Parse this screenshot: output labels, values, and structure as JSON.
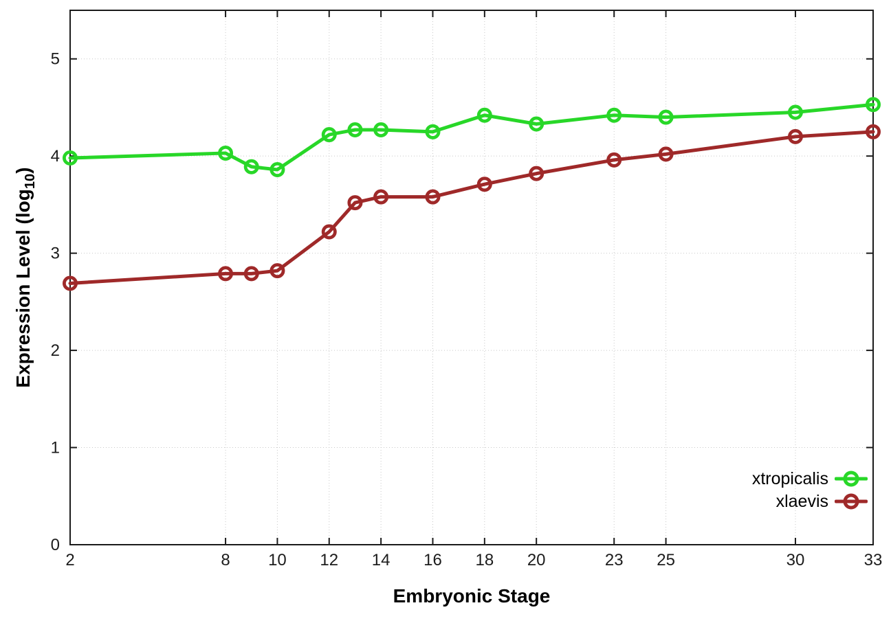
{
  "figure": {
    "x_axis_title": "Embryonic Stage",
    "y_axis_title_prefix": "Expression Level (log",
    "y_axis_title_sub": "10",
    "y_axis_title_suffix": ")"
  },
  "legend": {
    "entries": [
      {
        "label": "xtropicalis",
        "color": "#28d728"
      },
      {
        "label": "xlaevis",
        "color": "#9f2929"
      }
    ]
  },
  "chart_data": {
    "type": "line",
    "title": "",
    "xlabel": "Embryonic Stage",
    "ylabel": "Expression Level (log10)",
    "x": [
      2,
      8,
      9,
      10,
      12,
      13,
      14,
      16,
      18,
      20,
      23,
      25,
      30,
      33
    ],
    "xticks": [
      2,
      8,
      10,
      12,
      14,
      16,
      18,
      20,
      23,
      25,
      30,
      33
    ],
    "yticks": [
      0,
      1,
      2,
      3,
      4,
      5
    ],
    "xlim": [
      2,
      33
    ],
    "ylim": [
      0,
      5.5
    ],
    "grid": true,
    "grid_style": "dotted",
    "legend_position": "inside-bottom-right",
    "marker": "open-circle",
    "colors": {
      "border": "#1a1a1a",
      "grid": "#c8c8c8",
      "tick_label": "#1c1c1c"
    },
    "series": [
      {
        "name": "xtropicalis",
        "color": "#28d728",
        "values": [
          3.98,
          4.03,
          3.89,
          3.86,
          4.22,
          4.27,
          4.27,
          4.25,
          4.42,
          4.33,
          4.42,
          4.4,
          4.45,
          4.53
        ]
      },
      {
        "name": "xlaevis",
        "color": "#9f2929",
        "values": [
          2.69,
          2.79,
          2.79,
          2.82,
          3.22,
          3.52,
          3.58,
          3.58,
          3.71,
          3.82,
          3.96,
          4.02,
          4.2,
          4.25
        ]
      }
    ]
  }
}
